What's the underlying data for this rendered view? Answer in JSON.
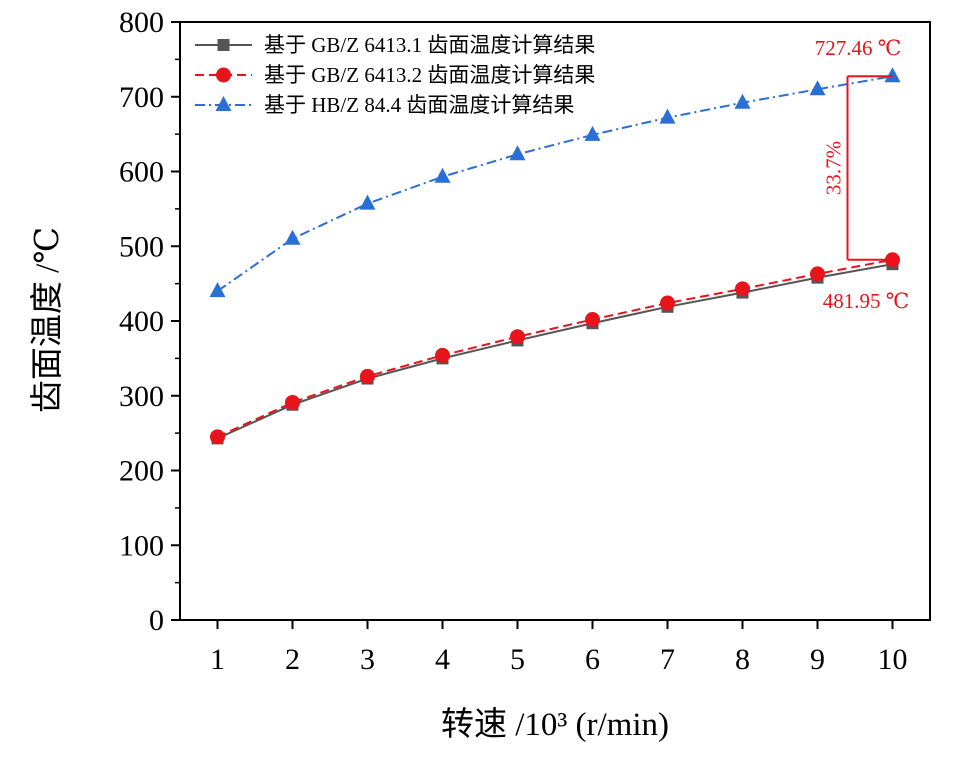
{
  "chart_data": {
    "type": "line",
    "x": [
      1,
      2,
      3,
      4,
      5,
      6,
      7,
      8,
      9,
      10
    ],
    "xlabel": "转速 /10³ (r/min)",
    "ylabel": "齿面温度 /℃",
    "xlim": [
      0.5,
      10.5
    ],
    "ylim": [
      0,
      800
    ],
    "xticks": [
      "1",
      "2",
      "3",
      "4",
      "5",
      "6",
      "7",
      "8",
      "9",
      "10"
    ],
    "yticks": [
      "0",
      "100",
      "200",
      "300",
      "400",
      "500",
      "600",
      "700",
      "800"
    ],
    "grid": false,
    "legend_position": "top-left",
    "series": [
      {
        "name": "基于 GB/Z 6413.1 齿面温度计算结果",
        "values": [
          243,
          288,
          323,
          350,
          374,
          397,
          419,
          438,
          458,
          476
        ],
        "color": "#555555",
        "marker": "square",
        "line_style": "solid"
      },
      {
        "name": "基于 GB/Z 6413.2 齿面温度计算结果",
        "values": [
          245,
          291,
          326,
          354,
          379,
          402,
          424,
          443,
          463,
          481.95
        ],
        "color": "#e8141c",
        "marker": "circle",
        "line_style": "dashed"
      },
      {
        "name": "基于 HB/Z 84.4 齿面温度计算结果",
        "values": [
          440,
          510,
          557,
          593,
          623,
          649,
          672,
          692,
          710,
          727.46
        ],
        "color": "#2a6fd6",
        "marker": "triangle",
        "line_style": "dash-dot"
      }
    ],
    "annotations": {
      "top_value": "727.46 ℃",
      "bottom_value": "481.95 ℃",
      "percent": "33.7%",
      "color": "#e8141c",
      "bracket_x": 9.4,
      "top_y": 727.46,
      "bottom_y": 481.95
    }
  }
}
